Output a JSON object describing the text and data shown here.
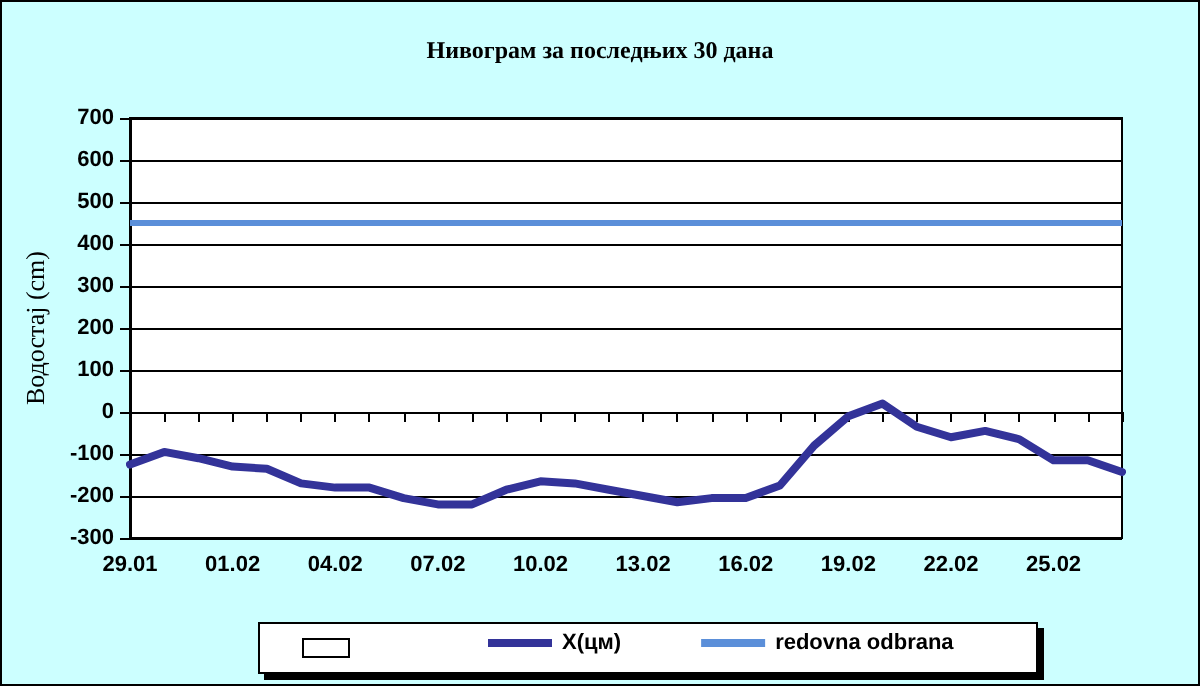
{
  "chart_data": {
    "type": "line",
    "title": "Нивограм за последњих 30 дана",
    "ylabel": "Водостај (cm)",
    "categories": [
      "29.01",
      null,
      null,
      "01.02",
      null,
      null,
      "04.02",
      null,
      null,
      "07.02",
      null,
      null,
      "10.02",
      null,
      null,
      "13.02",
      null,
      null,
      "16.02",
      null,
      null,
      "19.02",
      null,
      null,
      "22.02",
      null,
      null,
      "25.02",
      null,
      null
    ],
    "series": [
      {
        "name": "X(цм)",
        "color": "#333399",
        "values": [
          -125,
          -95,
          -110,
          -130,
          -135,
          -170,
          -180,
          -180,
          -205,
          -220,
          -220,
          -185,
          -165,
          -170,
          -185,
          -200,
          -215,
          -205,
          -205,
          -175,
          -80,
          -10,
          20,
          -35,
          -60,
          -45,
          -65,
          -115,
          -115,
          -143
        ]
      }
    ],
    "ref_lines": [
      {
        "axis": "y",
        "value": 450,
        "label": "redovna odbrana",
        "color": "#5b8fd9"
      }
    ],
    "ylim": [
      -300,
      700
    ],
    "yticks": [
      -300,
      -200,
      -100,
      0,
      100,
      200,
      300,
      400,
      500,
      600,
      700
    ],
    "grid": "y",
    "legend": "bottom",
    "marker": "none",
    "line_style": "solid"
  }
}
